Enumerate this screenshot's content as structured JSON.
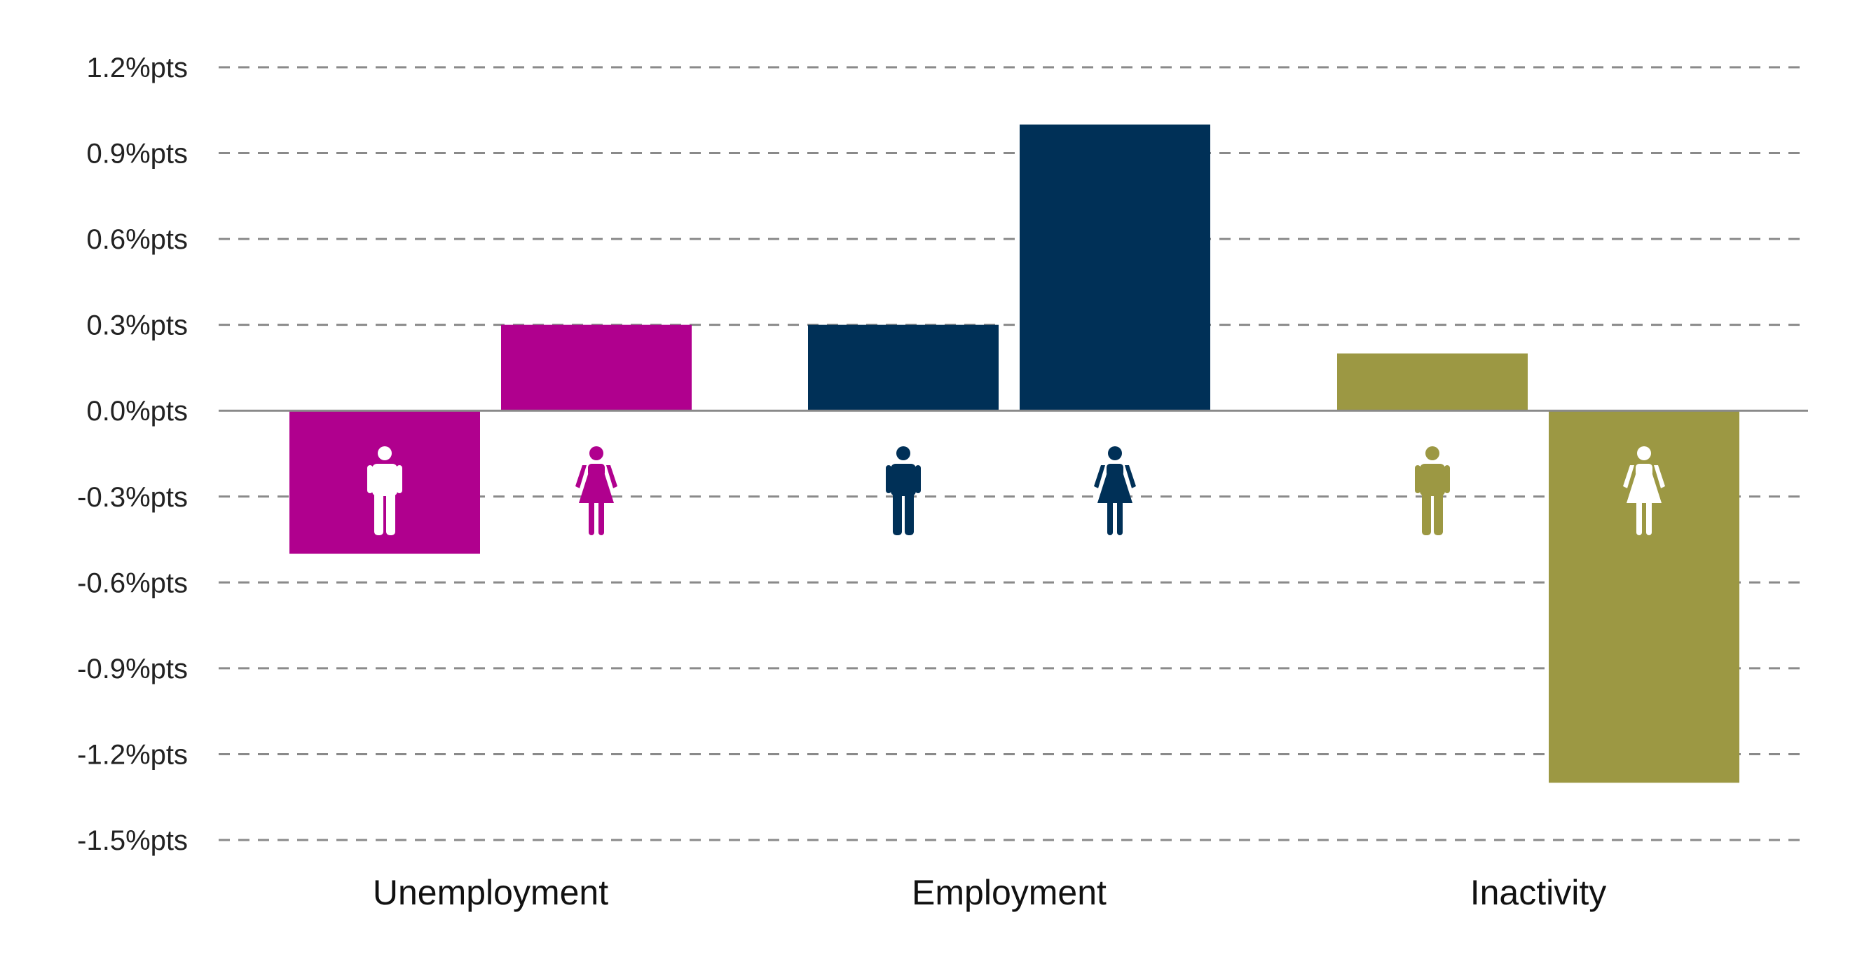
{
  "chart_data": {
    "type": "bar",
    "categories": [
      "Unemployment",
      "Employment",
      "Inactivity"
    ],
    "groups": [
      "men",
      "women"
    ],
    "values": [
      [
        -0.5,
        0.3
      ],
      [
        0.3,
        1.0
      ],
      [
        0.2,
        -1.3
      ]
    ],
    "colors": [
      "#b0008e",
      "#003057",
      "#9c9843"
    ],
    "icons": [
      "male-icon",
      "female-icon"
    ],
    "yticks": [
      1.2,
      0.9,
      0.6,
      0.3,
      0.0,
      -0.3,
      -0.6,
      -0.9,
      -1.2,
      -1.5
    ],
    "ytick_labels": [
      "1.2%pts",
      "0.9%pts",
      "0.6%pts",
      "0.3%pts",
      "0.0%pts",
      "-0.3%pts",
      "-0.6%pts",
      "-0.9%pts",
      "-1.2%pts",
      "-1.5%pts"
    ],
    "ylim": [
      -1.5,
      1.2
    ],
    "grid": true,
    "title": "",
    "xlabel": "",
    "ylabel": ""
  }
}
